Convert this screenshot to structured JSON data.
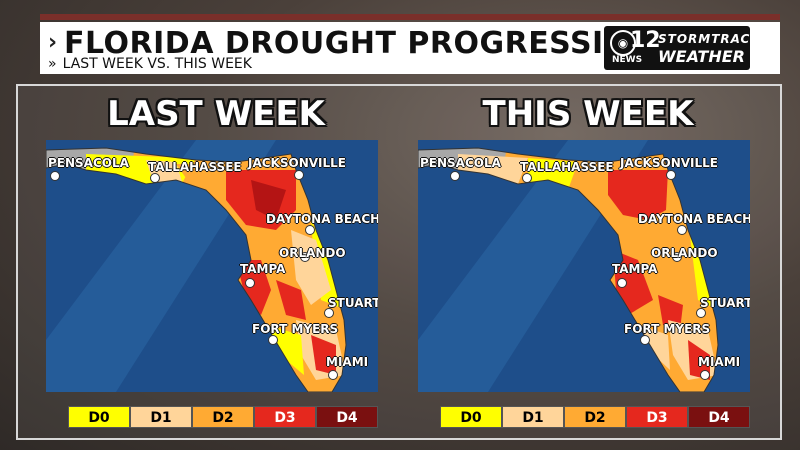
{
  "header": {
    "title": "FLORIDA DROUGHT PROGRESSION",
    "subtitle": "LAST WEEK VS. THIS WEEK"
  },
  "logo": {
    "number": "12",
    "news": "NEWS",
    "line1": "STORMTRAC",
    "line2": "WEATHER"
  },
  "panels": [
    {
      "title": "LAST WEEK"
    },
    {
      "title": "THIS WEEK"
    }
  ],
  "cities": {
    "pensacola": "PENSACOLA",
    "tallahassee": "TALLAHASSEE",
    "jacksonville": "JACKSONVILLE",
    "daytona": "DAYTONA BEACH",
    "orlando": "ORLANDO",
    "tampa": "TAMPA",
    "stuart": "STUART",
    "fort_myers": "FORT MYERS",
    "miami": "MIAMI"
  },
  "legend": [
    {
      "label": "D0",
      "color": "#ffff00",
      "text_color": "#000000"
    },
    {
      "label": "D1",
      "color": "#ffd59a",
      "text_color": "#000000"
    },
    {
      "label": "D2",
      "color": "#ffaa33",
      "text_color": "#000000"
    },
    {
      "label": "D3",
      "color": "#e5281e",
      "text_color": "#ffffff"
    },
    {
      "label": "D4",
      "color": "#7a1010",
      "text_color": "#ffffff"
    }
  ],
  "colors": {
    "ocean": "#1e4e8a",
    "no_drought": "#a8a8a8"
  }
}
